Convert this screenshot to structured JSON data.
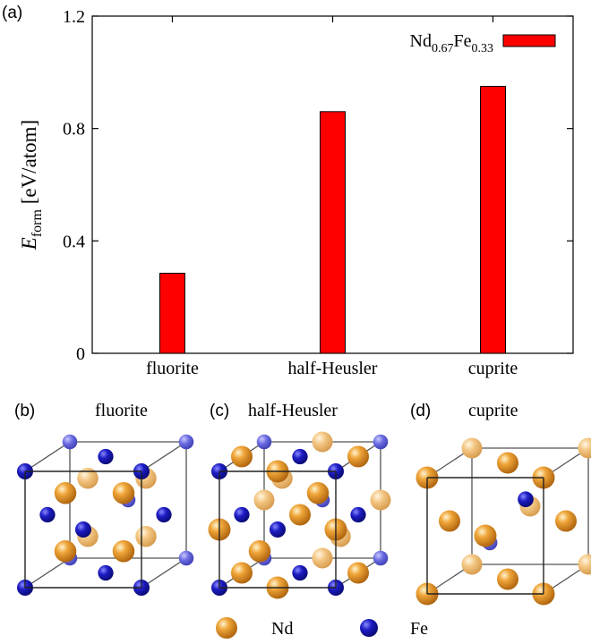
{
  "panels": {
    "a": "(a)",
    "b": "(b)",
    "c": "(c)",
    "d": "(d)"
  },
  "chart_data": {
    "type": "bar",
    "categories": [
      "fluorite",
      "half-Heusler",
      "cuprite"
    ],
    "series": [
      {
        "name": "Nd0.67Fe0.33",
        "values": [
          0.285,
          0.86,
          0.95
        ]
      }
    ],
    "legend": {
      "base1": "Nd",
      "sub1": "0.67",
      "base2": "Fe",
      "sub2": "0.33",
      "position": "top-right"
    },
    "ylabel": {
      "symbol": "E",
      "subscript": "form",
      "unit": "[eV/atom]"
    },
    "ylim": [
      0,
      1.2
    ],
    "yticks": [
      {
        "value": 0,
        "label": "0"
      },
      {
        "value": 0.4,
        "label": "0.4"
      },
      {
        "value": 0.8,
        "label": "0.8"
      },
      {
        "value": 1.2,
        "label": "1.2"
      }
    ],
    "grid": false,
    "bar_color": "#ff0000"
  },
  "structures": {
    "fluorite": "fluorite",
    "half_heusler": "half-Heusler",
    "cuprite": "cuprite"
  },
  "atom_legend": {
    "nd": "Nd",
    "fe": "Fe",
    "nd_color": "#d98c1a",
    "fe_color": "#1a1ab8"
  }
}
